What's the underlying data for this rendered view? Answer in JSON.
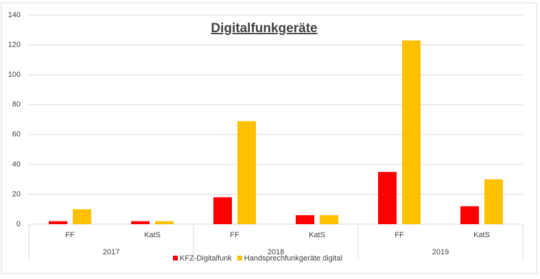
{
  "chart_data": {
    "type": "bar",
    "title": "Digitalfunkgeräte",
    "categories": [
      "FF",
      "KatS",
      "FF",
      "KatS",
      "FF",
      "KatS"
    ],
    "groups": [
      "2017",
      "2018",
      "2019"
    ],
    "series": [
      {
        "name": "KFZ-Digitalfunk",
        "color": "#ff0000",
        "values": [
          2,
          2,
          18,
          6,
          35,
          12
        ]
      },
      {
        "name": "Handsprechfunkgeräte digital",
        "color": "#ffc000",
        "values": [
          10,
          2,
          69,
          6,
          123,
          30
        ]
      }
    ],
    "ylim": [
      0,
      140
    ],
    "yticks": [
      0,
      20,
      40,
      60,
      80,
      100,
      120,
      140
    ],
    "grid": true,
    "legend": "bottom"
  }
}
